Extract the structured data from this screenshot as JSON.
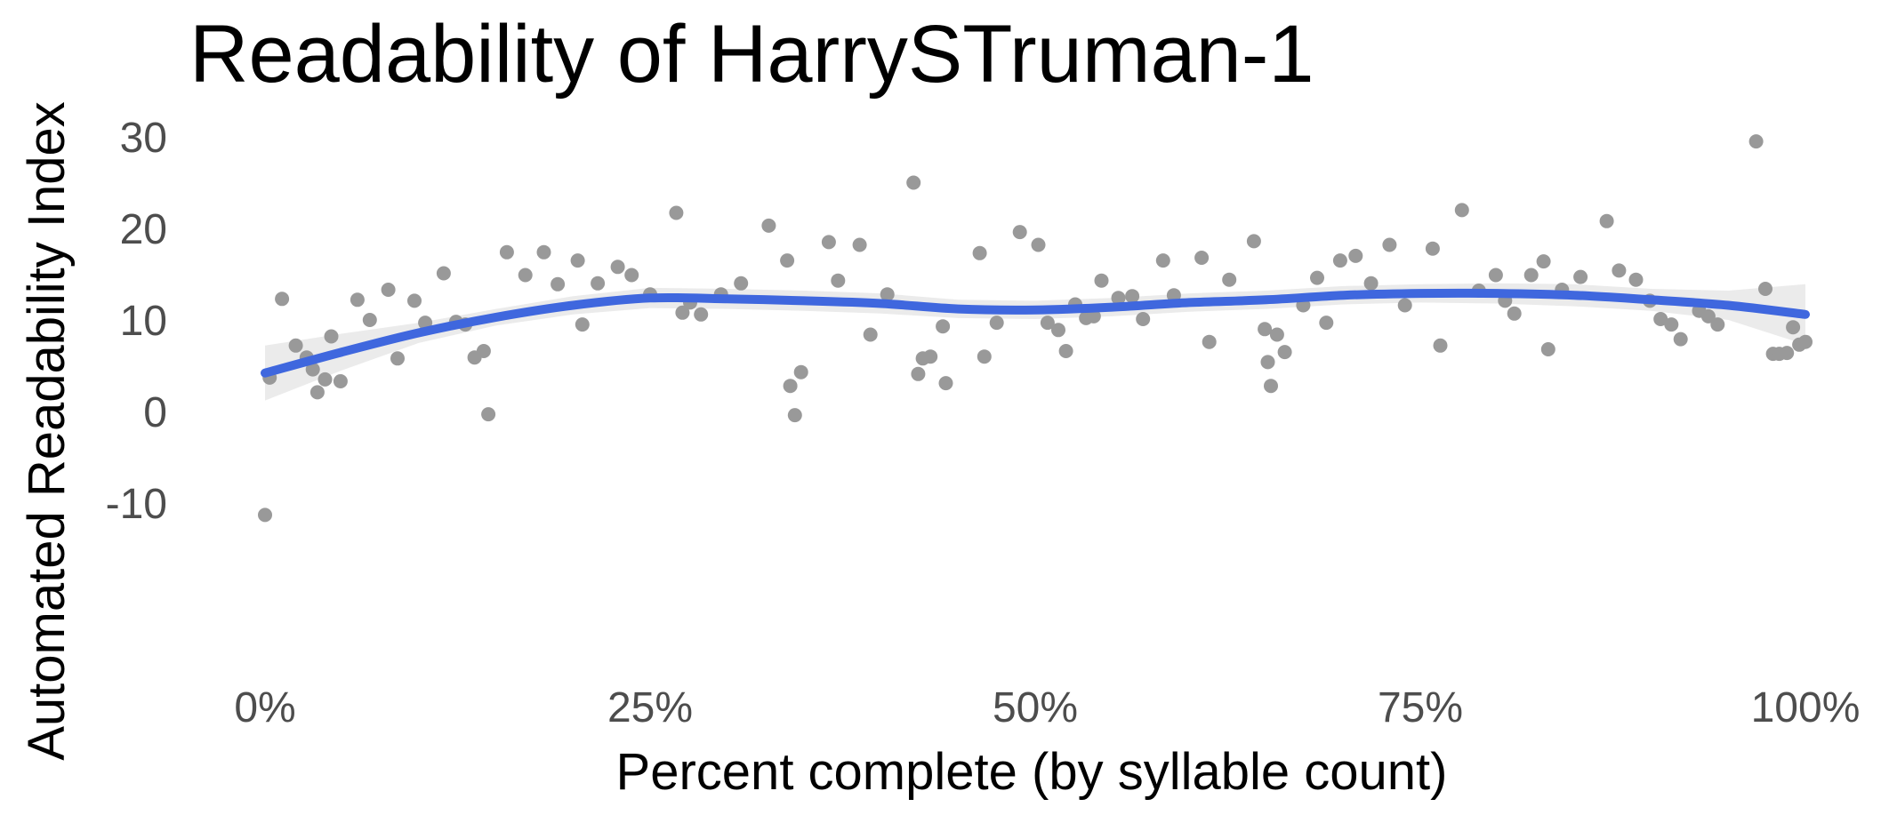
{
  "colors": {
    "background": "#ffffff",
    "points": "#999999",
    "smooth_line": "#3f67de",
    "confidence_band": "#ebebeb",
    "title_text": "#000000",
    "tick_text": "#4d4d4d"
  },
  "chart_data": {
    "type": "scatter",
    "title": "Readability of HarrySTruman-1",
    "xlabel": "Percent complete (by syllable count)",
    "ylabel": "Automated Readability Index",
    "xlim": [
      0,
      100
    ],
    "ylim": [
      -13,
      31
    ],
    "grid": false,
    "legend": "none",
    "x_ticks": [
      {
        "value": 0,
        "label": "0%"
      },
      {
        "value": 25,
        "label": "25%"
      },
      {
        "value": 50,
        "label": "50%"
      },
      {
        "value": 75,
        "label": "75%"
      },
      {
        "value": 100,
        "label": "100%"
      }
    ],
    "y_ticks": [
      {
        "value": -10,
        "label": "-10"
      },
      {
        "value": 0,
        "label": "0"
      },
      {
        "value": 10,
        "label": "10"
      },
      {
        "value": 20,
        "label": "20"
      },
      {
        "value": 30,
        "label": "30"
      }
    ],
    "points": [
      [
        0.0,
        -11.3
      ],
      [
        0.3,
        3.7
      ],
      [
        1.1,
        12.3
      ],
      [
        2.0,
        7.2
      ],
      [
        2.7,
        5.9
      ],
      [
        3.1,
        4.6
      ],
      [
        3.4,
        2.1
      ],
      [
        3.9,
        3.5
      ],
      [
        4.3,
        8.2
      ],
      [
        4.9,
        3.3
      ],
      [
        6.0,
        12.2
      ],
      [
        6.8,
        10.0
      ],
      [
        8.0,
        13.3
      ],
      [
        8.6,
        5.8
      ],
      [
        9.7,
        12.1
      ],
      [
        10.4,
        9.7
      ],
      [
        11.6,
        15.1
      ],
      [
        12.4,
        9.8
      ],
      [
        13.0,
        9.5
      ],
      [
        13.6,
        5.9
      ],
      [
        14.2,
        6.6
      ],
      [
        14.5,
        -0.3
      ],
      [
        15.7,
        17.4
      ],
      [
        16.9,
        14.9
      ],
      [
        18.1,
        17.4
      ],
      [
        19.0,
        13.9
      ],
      [
        20.3,
        16.5
      ],
      [
        20.6,
        9.5
      ],
      [
        21.6,
        14.0
      ],
      [
        22.9,
        15.8
      ],
      [
        23.8,
        14.9
      ],
      [
        25.0,
        12.8
      ],
      [
        26.7,
        21.7
      ],
      [
        27.1,
        10.8
      ],
      [
        27.6,
        11.9
      ],
      [
        28.3,
        10.6
      ],
      [
        29.6,
        12.8
      ],
      [
        30.9,
        14.0
      ],
      [
        32.7,
        20.3
      ],
      [
        33.9,
        16.5
      ],
      [
        34.1,
        2.8
      ],
      [
        34.4,
        -0.4
      ],
      [
        34.8,
        4.3
      ],
      [
        36.6,
        18.5
      ],
      [
        37.2,
        14.3
      ],
      [
        38.6,
        18.2
      ],
      [
        39.3,
        8.4
      ],
      [
        40.4,
        12.8
      ],
      [
        42.1,
        25.0
      ],
      [
        42.4,
        4.1
      ],
      [
        42.7,
        5.8
      ],
      [
        43.2,
        6.0
      ],
      [
        44.0,
        9.3
      ],
      [
        44.2,
        3.1
      ],
      [
        46.4,
        17.3
      ],
      [
        46.7,
        6.0
      ],
      [
        47.5,
        9.7
      ],
      [
        49.0,
        19.6
      ],
      [
        50.2,
        18.2
      ],
      [
        50.8,
        9.7
      ],
      [
        51.5,
        8.9
      ],
      [
        52.0,
        6.6
      ],
      [
        52.6,
        11.7
      ],
      [
        53.3,
        10.2
      ],
      [
        53.8,
        10.4
      ],
      [
        54.3,
        14.3
      ],
      [
        55.4,
        12.4
      ],
      [
        56.3,
        12.6
      ],
      [
        57.0,
        10.1
      ],
      [
        58.3,
        16.5
      ],
      [
        59.0,
        12.7
      ],
      [
        60.8,
        16.8
      ],
      [
        61.3,
        7.6
      ],
      [
        62.6,
        14.4
      ],
      [
        64.2,
        18.6
      ],
      [
        64.9,
        9.0
      ],
      [
        65.1,
        5.4
      ],
      [
        65.3,
        2.8
      ],
      [
        65.7,
        8.4
      ],
      [
        66.2,
        6.5
      ],
      [
        67.4,
        11.6
      ],
      [
        68.3,
        14.6
      ],
      [
        68.9,
        9.7
      ],
      [
        69.8,
        16.5
      ],
      [
        70.8,
        17.0
      ],
      [
        71.8,
        14.0
      ],
      [
        73.0,
        18.2
      ],
      [
        74.0,
        11.6
      ],
      [
        75.8,
        17.8
      ],
      [
        76.3,
        7.2
      ],
      [
        77.7,
        22.0
      ],
      [
        78.8,
        13.2
      ],
      [
        79.9,
        14.9
      ],
      [
        80.5,
        12.1
      ],
      [
        81.1,
        10.7
      ],
      [
        82.2,
        14.9
      ],
      [
        83.0,
        16.4
      ],
      [
        83.3,
        6.8
      ],
      [
        84.2,
        13.3
      ],
      [
        85.4,
        14.7
      ],
      [
        87.1,
        20.8
      ],
      [
        87.9,
        15.4
      ],
      [
        89.0,
        14.4
      ],
      [
        89.9,
        12.1
      ],
      [
        90.6,
        10.1
      ],
      [
        91.3,
        9.5
      ],
      [
        91.9,
        7.9
      ],
      [
        93.1,
        11.0
      ],
      [
        93.7,
        10.4
      ],
      [
        94.3,
        9.5
      ],
      [
        96.8,
        29.5
      ],
      [
        97.4,
        13.4
      ],
      [
        97.9,
        6.3
      ],
      [
        98.3,
        6.3
      ],
      [
        98.8,
        6.4
      ],
      [
        99.2,
        9.2
      ],
      [
        99.6,
        7.3
      ],
      [
        100.0,
        7.6
      ]
    ],
    "smooth": {
      "x": [
        0,
        5,
        10,
        15,
        20,
        25,
        30,
        35,
        40,
        45,
        50,
        55,
        60,
        65,
        70,
        75,
        80,
        85,
        90,
        95,
        100
      ],
      "y": [
        4.2,
        6.5,
        8.6,
        10.3,
        11.6,
        12.4,
        12.3,
        12.1,
        11.8,
        11.2,
        11.1,
        11.4,
        11.9,
        12.2,
        12.7,
        12.9,
        12.9,
        12.7,
        12.2,
        11.6,
        10.6
      ],
      "lower": [
        1.2,
        4.5,
        7.5,
        9.4,
        10.6,
        11.3,
        11.2,
        11.0,
        10.7,
        10.2,
        10.1,
        10.4,
        10.9,
        11.2,
        11.7,
        11.9,
        11.8,
        11.5,
        11.0,
        10.0,
        7.3
      ],
      "upper": [
        7.2,
        8.5,
        9.7,
        11.2,
        12.6,
        13.5,
        13.4,
        13.2,
        12.9,
        12.2,
        12.1,
        12.4,
        12.9,
        13.2,
        13.7,
        13.9,
        14.0,
        13.9,
        13.4,
        13.2,
        13.9
      ]
    }
  }
}
